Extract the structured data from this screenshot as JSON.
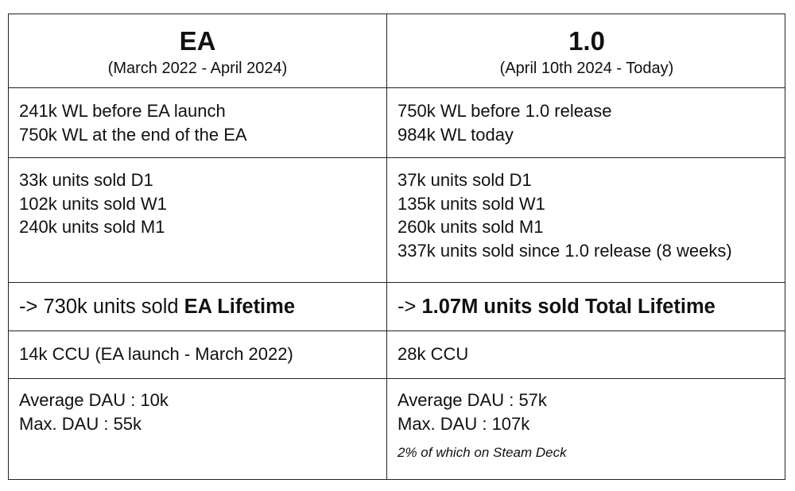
{
  "table": {
    "left_header": {
      "title": "EA",
      "subtitle": "(March 2022 - April 2024)"
    },
    "right_header": {
      "title": "1.0",
      "subtitle": "(April 10th 2024 - Today)"
    },
    "wishlists": {
      "left": [
        "241k WL before EA launch",
        "750k WL at the end of the EA"
      ],
      "right": [
        "750k WL before 1.0 release",
        "984k WL today"
      ]
    },
    "sales": {
      "left": [
        "33k units sold D1",
        "102k units sold W1",
        "240k units sold M1"
      ],
      "right": [
        "37k units sold D1",
        "135k units sold W1",
        "260k units sold M1",
        "337k units sold since 1.0 release (8 weeks)"
      ]
    },
    "lifetime": {
      "left_prefix": "-> 730k units sold ",
      "left_bold": "EA Lifetime",
      "right_prefix": "-> ",
      "right_bold": "1.07M units sold Total Lifetime"
    },
    "ccu": {
      "left": "14k CCU (EA launch - March 2022)",
      "right": "28k CCU"
    },
    "dau": {
      "left": [
        "Average DAU : 10k",
        "Max. DAU : 55k"
      ],
      "right": [
        "Average DAU : 57k",
        "Max. DAU : 107k"
      ],
      "right_note": "2% of which on Steam Deck"
    }
  }
}
